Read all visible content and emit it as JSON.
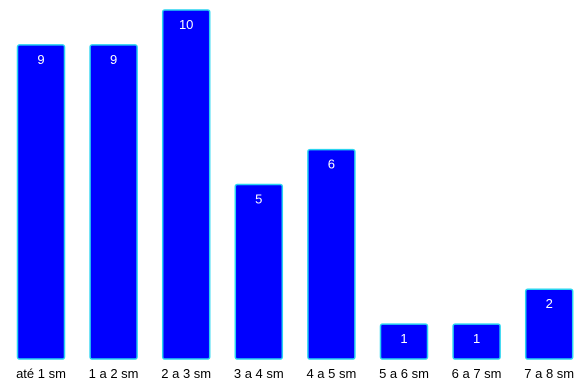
{
  "chart_data": {
    "type": "bar",
    "categories": [
      "até 1 sm",
      "1 a 2 sm",
      "2 a 3 sm",
      "3 a 4 sm",
      "4 a 5 sm",
      "5 a 6 sm",
      "6 a 7 sm",
      "7 a 8 sm"
    ],
    "values": [
      9,
      9,
      10,
      5,
      6,
      1,
      1,
      2
    ],
    "title": "",
    "xlabel": "",
    "ylabel": "",
    "ylim": [
      0,
      10
    ],
    "grid": false,
    "legend": "none",
    "colors": {
      "bar_fill": "#0000ff",
      "bar_stroke": "#29d4f0",
      "label_text": "#ffffff"
    }
  }
}
